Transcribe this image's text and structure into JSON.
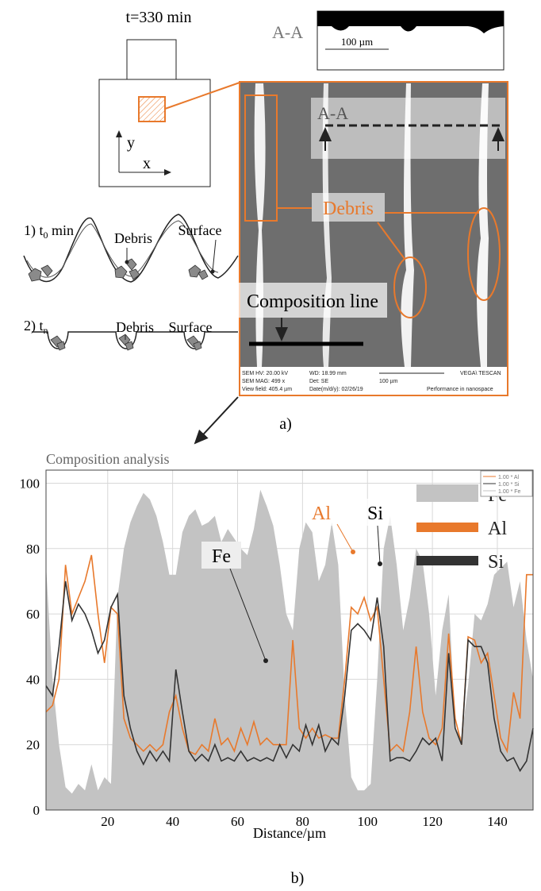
{
  "figure_a": {
    "time": "t=330 min",
    "axis_y": "y",
    "axis_x": "x",
    "section_top": "A-A",
    "scale_top": "100 µm",
    "section_sem": "A-A",
    "debris_sem": "Debris",
    "composition_line": "Composition line",
    "sem_info": [
      "SEM HV: 20.00 kV",
      "WD: 18.99 mm",
      "SEM MAG: 499 x",
      "Det: SE",
      "View field: 405.4 µm",
      "Date(m/d/y): 02/26/19",
      "100 µm",
      "VEGA\\ TESCAN",
      "Performance in nanospace"
    ],
    "step1": {
      "prefix": "1) t",
      "sub": "0",
      "suffix": " min",
      "debris": "Debris",
      "surface": "Surface"
    },
    "step2": {
      "prefix": "2) t",
      "sub": "n",
      "debris": "Debris",
      "surface": "Surface"
    },
    "label": "a)"
  },
  "chart_data": {
    "type": "line",
    "title": "Composition analysis",
    "x_label": "Distance/µm",
    "panel_label": "b)",
    "x": [
      1,
      3,
      5,
      7,
      9,
      11,
      13,
      15,
      17,
      19,
      21,
      23,
      25,
      27,
      29,
      31,
      33,
      35,
      37,
      39,
      41,
      43,
      45,
      47,
      49,
      51,
      53,
      55,
      57,
      59,
      61,
      63,
      65,
      67,
      69,
      71,
      73,
      75,
      77,
      79,
      81,
      83,
      85,
      87,
      89,
      91,
      93,
      95,
      97,
      99,
      101,
      103,
      105,
      107,
      109,
      111,
      113,
      115,
      117,
      119,
      121,
      123,
      125,
      127,
      129,
      131,
      133,
      135,
      137,
      139,
      141,
      143,
      145,
      147,
      149,
      151
    ],
    "series": [
      {
        "name": "Fe",
        "color": "#c3c3c3",
        "style": "area",
        "values": [
          75,
          40,
          20,
          7,
          5,
          8,
          6,
          14,
          6,
          10,
          8,
          65,
          80,
          88,
          93,
          97,
          95,
          90,
          82,
          72,
          72,
          85,
          90,
          92,
          87,
          88,
          90,
          82,
          86,
          83,
          80,
          78,
          86,
          98,
          93,
          87,
          75,
          60,
          55,
          80,
          88,
          85,
          70,
          75,
          88,
          75,
          35,
          10,
          6,
          6,
          8,
          40,
          80,
          90,
          75,
          55,
          65,
          80,
          76,
          60,
          35,
          55,
          66,
          25,
          22,
          38,
          60,
          58,
          63,
          72,
          74,
          76,
          62,
          70,
          52,
          40
        ]
      },
      {
        "name": "Al",
        "color": "#e8792c",
        "style": "line",
        "values": [
          30,
          32,
          40,
          75,
          60,
          65,
          70,
          78,
          60,
          45,
          62,
          60,
          28,
          22,
          20,
          18,
          20,
          18,
          20,
          30,
          35,
          25,
          18,
          17,
          20,
          18,
          28,
          20,
          22,
          18,
          25,
          20,
          27,
          20,
          22,
          20,
          20,
          20,
          52,
          25,
          22,
          25,
          22,
          23,
          22,
          22,
          40,
          62,
          60,
          65,
          58,
          62,
          40,
          18,
          20,
          18,
          30,
          50,
          30,
          22,
          20,
          25,
          54,
          28,
          20,
          53,
          52,
          45,
          48,
          35,
          22,
          18,
          36,
          28,
          72,
          72
        ]
      },
      {
        "name": "Si",
        "color": "#333333",
        "style": "line",
        "values": [
          38,
          35,
          50,
          70,
          58,
          63,
          60,
          55,
          48,
          52,
          62,
          66,
          35,
          25,
          18,
          14,
          18,
          15,
          18,
          15,
          43,
          30,
          18,
          15,
          17,
          15,
          20,
          15,
          16,
          15,
          18,
          15,
          16,
          15,
          16,
          15,
          20,
          16,
          20,
          18,
          26,
          20,
          26,
          18,
          22,
          20,
          35,
          55,
          57,
          55,
          52,
          65,
          50,
          15,
          16,
          16,
          15,
          18,
          22,
          20,
          22,
          15,
          48,
          25,
          20,
          52,
          50,
          50,
          45,
          28,
          18,
          15,
          16,
          12,
          15,
          25
        ]
      }
    ],
    "xlim": [
      1,
      151
    ],
    "ylim": [
      0,
      104
    ],
    "xticks": [
      20,
      40,
      60,
      80,
      100,
      120,
      140
    ],
    "yticks": [
      0,
      20,
      40,
      60,
      80,
      100
    ],
    "grid": true,
    "legend": "upper right",
    "small_legend": [
      "1.00 * Al",
      "1.00 * Si",
      "1.00 * Fe"
    ],
    "annotations": [
      "Fe",
      "Al",
      "Si"
    ]
  }
}
